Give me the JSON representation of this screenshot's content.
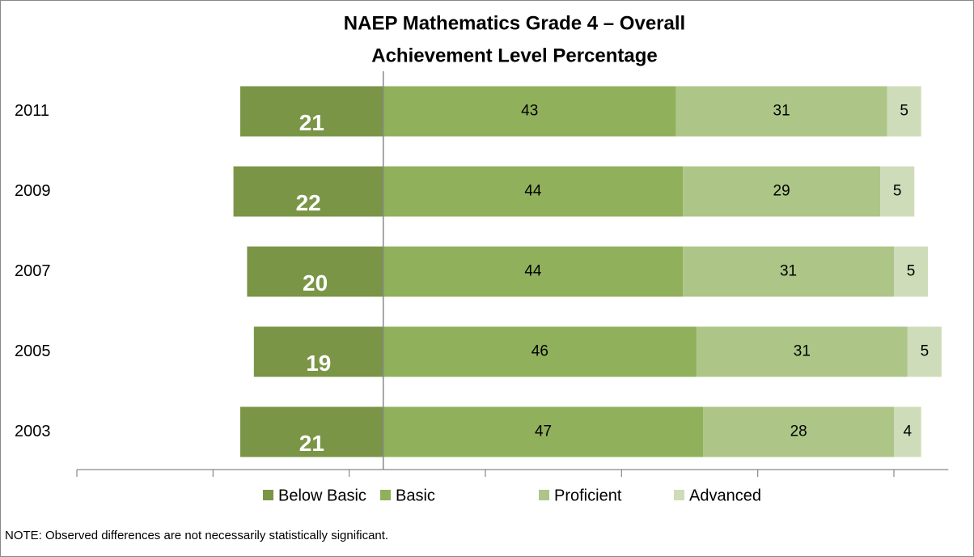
{
  "chart_data": {
    "type": "bar",
    "title": [
      "NAEP Mathematics Grade 4 – Overall",
      "Achievement Level Percentage"
    ],
    "categories": [
      "2011",
      "2009",
      "2007",
      "2005",
      "2003"
    ],
    "series": [
      {
        "name": "Below Basic",
        "color": "#7a9546",
        "values": [
          21,
          22,
          20,
          19,
          21
        ]
      },
      {
        "name": "Basic",
        "color": "#91b05b",
        "values": [
          43,
          44,
          44,
          46,
          47
        ]
      },
      {
        "name": "Proficient",
        "color": "#adc687",
        "values": [
          31,
          29,
          31,
          31,
          28
        ]
      },
      {
        "name": "Advanced",
        "color": "#cfdcb9",
        "values": [
          5,
          5,
          5,
          5,
          4
        ]
      }
    ],
    "xlim": [
      -45,
      83
    ],
    "xticks": [
      -45,
      -25,
      -5,
      15,
      35,
      55,
      75
    ],
    "note": "NOTE:  Observed differences are not necessarily statistically significant."
  }
}
